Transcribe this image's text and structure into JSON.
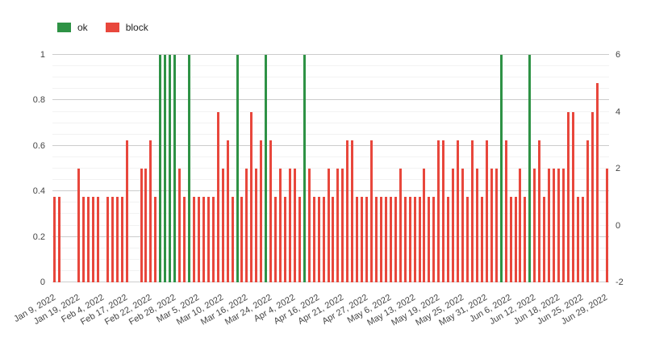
{
  "legend": {
    "items": [
      {
        "label": "ok",
        "color": "#2e9245"
      },
      {
        "label": "block",
        "color": "#e8473c"
      }
    ]
  },
  "chart_data": {
    "type": "bar",
    "title": "",
    "xlabel": "",
    "ylabel": "",
    "grid": true,
    "legend_position": "top-left",
    "label_every": 5,
    "x_labels": [
      "Jan 9, 2022",
      "Jan 19, 2022",
      "Feb 4, 2022",
      "Feb 17, 2022",
      "Feb 22, 2022",
      "Feb 28, 2022",
      "Mar 5, 2022",
      "Mar 10, 2022",
      "Mar 16, 2022",
      "Mar 24, 2022",
      "Apr 4, 2022",
      "Apr 16, 2022",
      "Apr 21, 2022",
      "Apr 27, 2022",
      "May 6, 2022",
      "May 13, 2022",
      "May 19, 2022",
      "May 25, 2022",
      "May 31, 2022",
      "Jun 6, 2022",
      "Jun 12, 2022",
      "Jun 18, 2022",
      "Jun 25, 2022",
      "Jun 29, 2022"
    ],
    "left_axis": {
      "min": 0,
      "max": 1,
      "ticks": [
        0,
        0.2,
        0.4,
        0.6,
        0.8,
        1
      ]
    },
    "right_axis": {
      "min": -2,
      "max": 6,
      "ticks": [
        -2,
        0,
        2,
        4,
        6
      ]
    },
    "series": [
      {
        "name": "ok",
        "color": "#2e9245",
        "axis": "left",
        "values": [
          0,
          0,
          0,
          0,
          0,
          0,
          0,
          0,
          0,
          0,
          0,
          0,
          0,
          0,
          0,
          0,
          0,
          0,
          0,
          0,
          0,
          0,
          1,
          1,
          1,
          1,
          0,
          0,
          1,
          0,
          0,
          0,
          0,
          0,
          0,
          0,
          0,
          0,
          1,
          0,
          0,
          0,
          0,
          0,
          1,
          0,
          0,
          0,
          0,
          0,
          0,
          0,
          1,
          0,
          0,
          0,
          0,
          0,
          0,
          0,
          0,
          0,
          0,
          0,
          0,
          0,
          0,
          0,
          0,
          0,
          0,
          0,
          0,
          0,
          0,
          0,
          0,
          0,
          0,
          0,
          0,
          0,
          0,
          0,
          0,
          0,
          0,
          0,
          0,
          0,
          0,
          0,
          0,
          1,
          0,
          0,
          0,
          0,
          0,
          1,
          0,
          0,
          0,
          0,
          0,
          0,
          0,
          0,
          0,
          0,
          0,
          0,
          0,
          0,
          0,
          0
        ]
      },
      {
        "name": "block",
        "color": "#e8473c",
        "axis": "right",
        "values": [
          1,
          1,
          0,
          0,
          0,
          2,
          1,
          1,
          1,
          1,
          0,
          1,
          1,
          1,
          1,
          3,
          0,
          0,
          2,
          2,
          3,
          1,
          0,
          0,
          0,
          0,
          2,
          1,
          0,
          1,
          1,
          1,
          1,
          1,
          4,
          2,
          3,
          1,
          0,
          1,
          2,
          4,
          2,
          3,
          0,
          3,
          1,
          2,
          1,
          2,
          2,
          1,
          0,
          2,
          1,
          1,
          1,
          2,
          1,
          2,
          2,
          3,
          3,
          1,
          1,
          1,
          3,
          1,
          1,
          1,
          1,
          1,
          2,
          1,
          1,
          1,
          1,
          2,
          1,
          1,
          3,
          3,
          1,
          2,
          3,
          2,
          1,
          3,
          2,
          1,
          3,
          2,
          2,
          0,
          3,
          1,
          1,
          2,
          1,
          0,
          2,
          3,
          1,
          2,
          2,
          2,
          2,
          4,
          4,
          1,
          1,
          3,
          4,
          5,
          0,
          2
        ]
      }
    ]
  }
}
